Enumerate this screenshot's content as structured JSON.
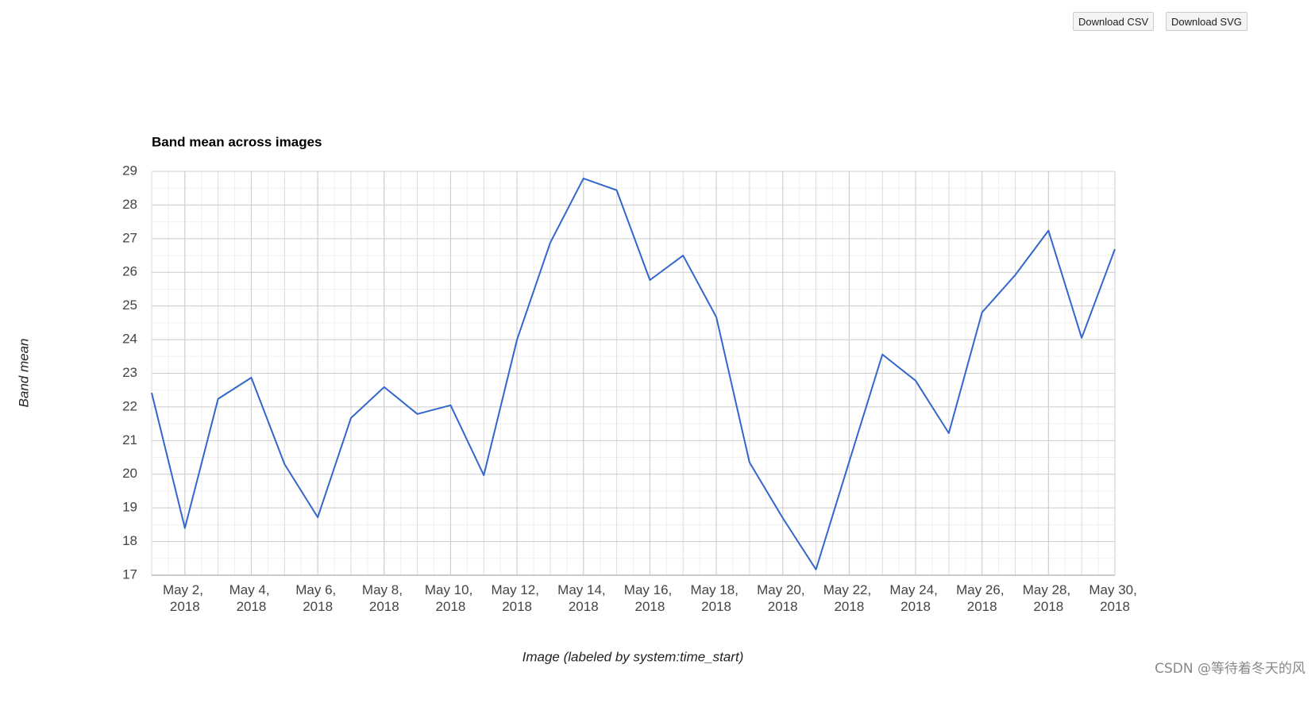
{
  "buttons": [
    "Download CSV",
    "Download SVG"
  ],
  "watermark": "CSDN @等待着冬天的风",
  "chart_data": {
    "type": "line",
    "title": "Band mean across images",
    "x_label": "Image (labeled by system:time_start)",
    "y_label": "Band mean",
    "x": [
      "2018-05-01",
      "2018-05-02",
      "2018-05-03",
      "2018-05-04",
      "2018-05-05",
      "2018-05-06",
      "2018-05-07",
      "2018-05-08",
      "2018-05-09",
      "2018-05-10",
      "2018-05-11",
      "2018-05-12",
      "2018-05-13",
      "2018-05-14",
      "2018-05-15",
      "2018-05-16",
      "2018-05-17",
      "2018-05-18",
      "2018-05-19",
      "2018-05-20",
      "2018-05-21",
      "2018-05-22",
      "2018-05-23",
      "2018-05-24",
      "2018-05-25",
      "2018-05-26",
      "2018-05-27",
      "2018-05-28",
      "2018-05-29",
      "2018-05-30"
    ],
    "series": [
      {
        "name": "Band mean",
        "color": "#3366cc",
        "values": [
          22.42,
          18.4,
          22.24,
          22.87,
          20.3,
          18.72,
          21.67,
          22.59,
          21.79,
          22.05,
          19.97,
          24.0,
          26.88,
          28.79,
          28.44,
          25.77,
          26.5,
          24.67,
          20.35,
          18.7,
          17.17,
          20.37,
          23.56,
          22.78,
          21.22,
          24.81,
          25.92,
          27.24,
          24.05,
          26.69
        ]
      }
    ],
    "xlim": [
      "2018-05-01",
      "2018-05-30"
    ],
    "xticks": [
      {
        "value": "2018-05-02",
        "label": "May 2, 2018"
      },
      {
        "value": "2018-05-04",
        "label": "May 4, 2018"
      },
      {
        "value": "2018-05-06",
        "label": "May 6, 2018"
      },
      {
        "value": "2018-05-08",
        "label": "May 8, 2018"
      },
      {
        "value": "2018-05-10",
        "label": "May 10, 2018"
      },
      {
        "value": "2018-05-12",
        "label": "May 12, 2018"
      },
      {
        "value": "2018-05-14",
        "label": "May 14, 2018"
      },
      {
        "value": "2018-05-16",
        "label": "May 16, 2018"
      },
      {
        "value": "2018-05-18",
        "label": "May 18, 2018"
      },
      {
        "value": "2018-05-20",
        "label": "May 20, 2018"
      },
      {
        "value": "2018-05-22",
        "label": "May 22, 2018"
      },
      {
        "value": "2018-05-24",
        "label": "May 24, 2018"
      },
      {
        "value": "2018-05-26",
        "label": "May 26, 2018"
      },
      {
        "value": "2018-05-28",
        "label": "May 28, 2018"
      },
      {
        "value": "2018-05-30",
        "label": "May 30, 2018"
      }
    ],
    "ylim": [
      17,
      29
    ],
    "yticks": [
      17,
      18,
      19,
      20,
      21,
      22,
      23,
      24,
      25,
      26,
      27,
      28,
      29
    ],
    "grid": true,
    "legend": false
  }
}
